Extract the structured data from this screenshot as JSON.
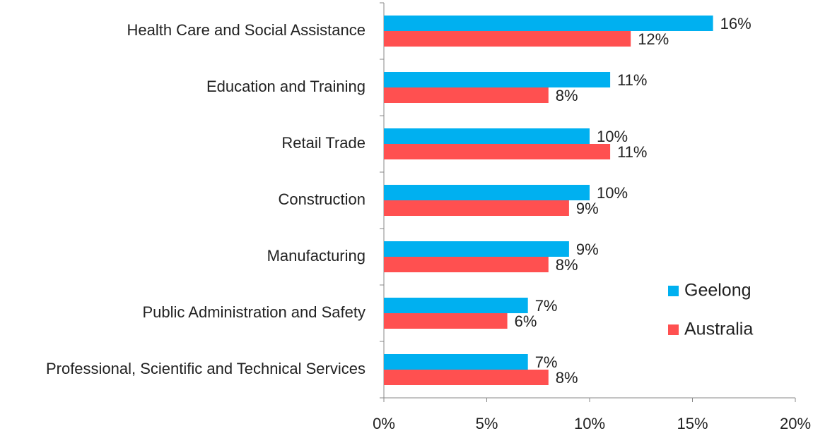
{
  "chart_data": {
    "type": "hbar",
    "categories": [
      "Health Care and Social Assistance",
      "Education and Training",
      "Retail Trade",
      "Construction",
      "Manufacturing",
      "Public Administration and Safety",
      "Professional, Scientific and Technical Services"
    ],
    "series": [
      {
        "name": "Geelong",
        "color": "#00b0f0",
        "values": [
          16,
          11,
          10,
          10,
          9,
          7,
          7
        ],
        "value_labels": [
          "16%",
          "11%",
          "10%",
          "10%",
          "9%",
          "7%",
          "7%"
        ]
      },
      {
        "name": "Australia",
        "color": "#ff5050",
        "values": [
          12,
          8,
          11,
          9,
          8,
          6,
          8
        ],
        "value_labels": [
          "12%",
          "8%",
          "11%",
          "9%",
          "8%",
          "6%",
          "8%"
        ]
      }
    ],
    "xlim": [
      0,
      20
    ],
    "xticks": [
      {
        "value": 0,
        "label": "0%"
      },
      {
        "value": 5,
        "label": "5%"
      },
      {
        "value": 10,
        "label": "10%"
      },
      {
        "value": 15,
        "label": "15%"
      },
      {
        "value": 20,
        "label": "20%"
      }
    ],
    "legend": "right"
  }
}
